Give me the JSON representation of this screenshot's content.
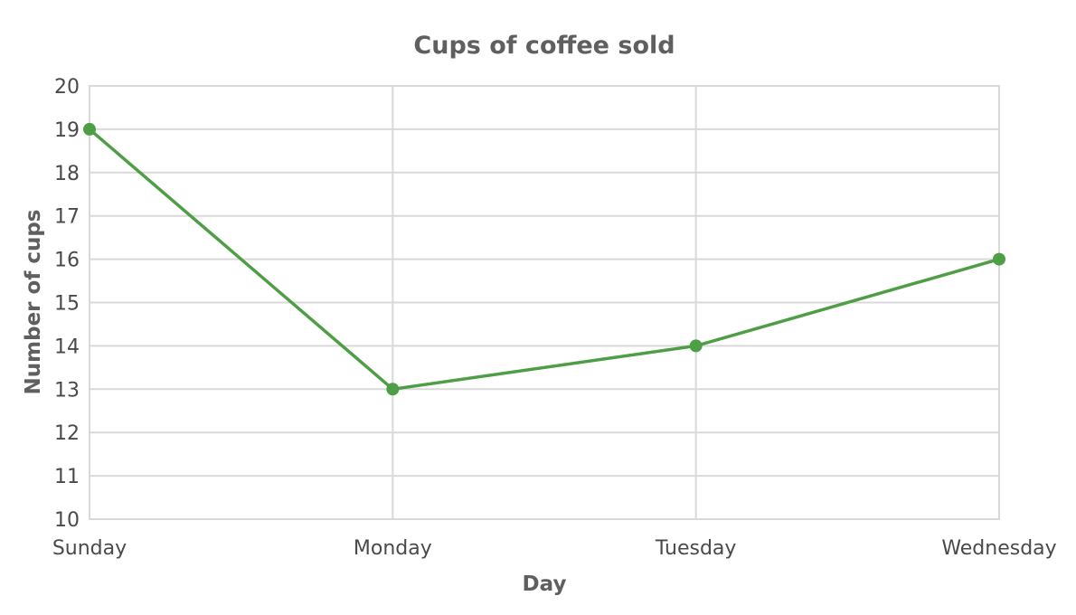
{
  "chart_data": {
    "type": "line",
    "title": "Cups of coffee sold",
    "xlabel": "Day",
    "ylabel": "Number of cups",
    "categories": [
      "Sunday",
      "Monday",
      "Tuesday",
      "Wednesday"
    ],
    "series": [
      {
        "values": [
          19,
          13,
          14,
          16
        ],
        "color": "#4e9e45"
      }
    ],
    "ylim": [
      10,
      20
    ],
    "yticks": [
      "10",
      "11",
      "12",
      "13",
      "14",
      "15",
      "16",
      "17",
      "18",
      "19",
      "20"
    ],
    "grid": true,
    "legend": "none"
  }
}
